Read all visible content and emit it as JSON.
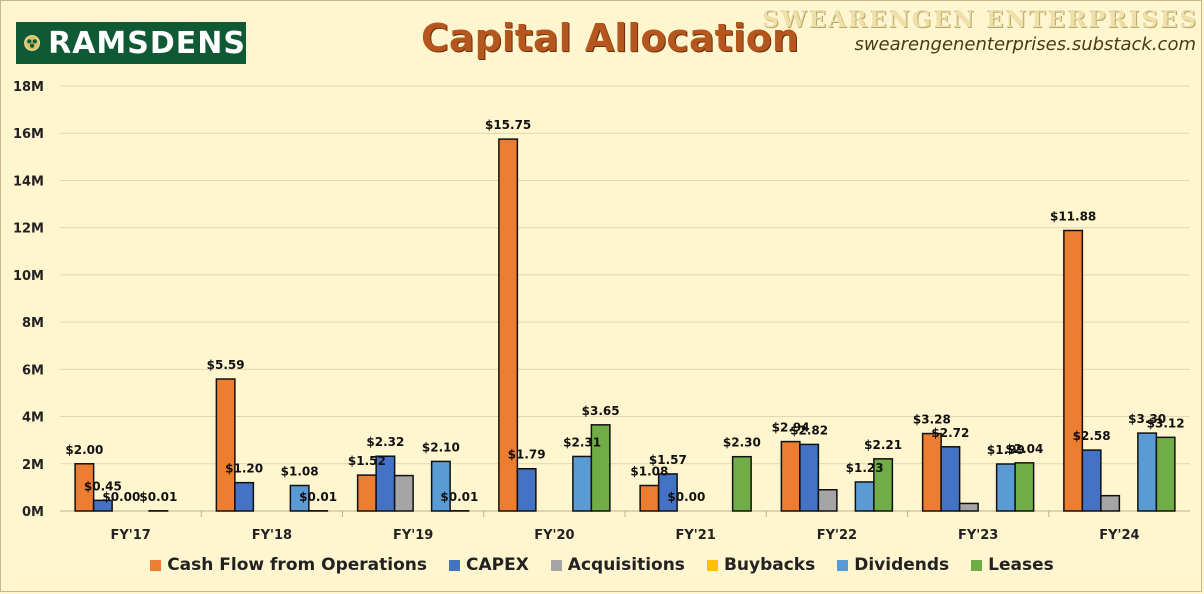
{
  "header": {
    "logo_text": "RAMSDENS",
    "title": "Capital Allocation",
    "brand": "SWEARENGEN ENTERPRISES",
    "url": "swearengenenterprises.substack.com"
  },
  "chart_data": {
    "type": "bar",
    "title": "Capital Allocation",
    "categories": [
      "FY'17",
      "FY'18",
      "FY'19",
      "FY'20",
      "FY'21",
      "FY'22",
      "FY'23",
      "FY'24"
    ],
    "yticks": [
      "0M",
      "2M",
      "4M",
      "6M",
      "8M",
      "10M",
      "12M",
      "14M",
      "16M",
      "18M"
    ],
    "ylim": [
      0,
      18
    ],
    "grid": true,
    "legend_position": "bottom",
    "series": [
      {
        "name": "Cash Flow from Operations",
        "color": "#ed7d31",
        "values": [
          2.0,
          5.59,
          1.52,
          15.75,
          1.08,
          2.94,
          3.28,
          11.88
        ],
        "labels": [
          "$2.00",
          "$5.59",
          "$1.52",
          "$15.75",
          "$1.08",
          "$2.94",
          "$3.28",
          "$11.88"
        ]
      },
      {
        "name": "CAPEX",
        "color": "#4472c4",
        "values": [
          0.45,
          1.2,
          2.32,
          1.79,
          1.57,
          2.82,
          2.72,
          2.58
        ],
        "labels": [
          "$0.45",
          "$1.20",
          "$2.32",
          "$1.79",
          "$1.57",
          "$2.82",
          "$2.72",
          "$2.58"
        ]
      },
      {
        "name": "Acquisitions",
        "color": "#a5a5a5",
        "values": [
          0.0,
          0.0,
          1.5,
          0.0,
          0.0,
          0.9,
          0.32,
          0.65
        ],
        "labels": [
          "$0.00",
          "",
          "",
          "",
          "$0.00",
          "",
          "",
          ""
        ]
      },
      {
        "name": "Buybacks",
        "color": "#ffc000",
        "values": [
          0,
          0,
          0,
          0,
          0,
          0,
          0,
          0
        ],
        "labels": [
          "",
          "",
          "",
          "",
          "",
          "",
          "",
          ""
        ]
      },
      {
        "name": "Dividends",
        "color": "#5b9bd5",
        "values": [
          0.01,
          1.08,
          2.1,
          2.31,
          0.0,
          1.23,
          1.99,
          3.3
        ],
        "labels": [
          "$0.01",
          "$1.08",
          "$2.10",
          "$2.31",
          "",
          "$1.23",
          "$1.99",
          "$3.30"
        ]
      },
      {
        "name": "Leases",
        "color": "#70ad47",
        "values": [
          0.0,
          0.01,
          0.01,
          3.65,
          2.3,
          2.21,
          2.04,
          3.12
        ],
        "labels": [
          "",
          "$0.01",
          "$0.01",
          "$3.65",
          "$2.30",
          "$2.21",
          "$2.04",
          "$3.12"
        ]
      }
    ]
  }
}
